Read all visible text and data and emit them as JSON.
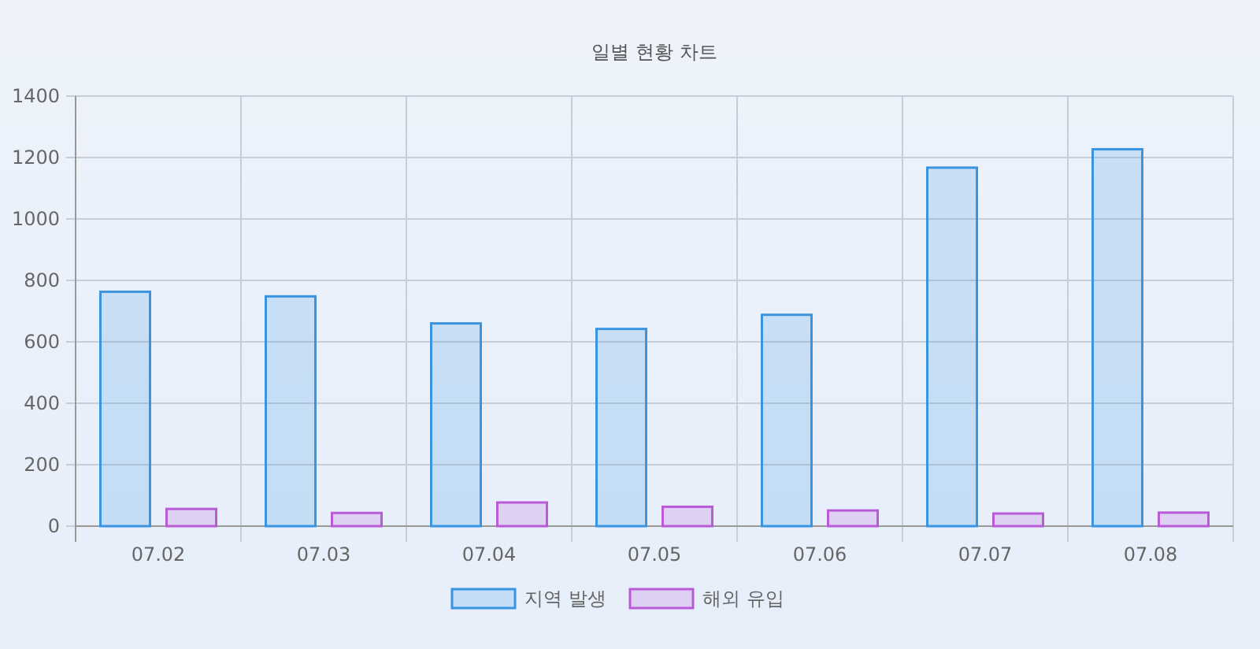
{
  "chart_data": {
    "type": "bar",
    "title": "일별 현황 차트",
    "categories": [
      "07.02",
      "07.03",
      "07.04",
      "07.05",
      "07.06",
      "07.07",
      "07.08"
    ],
    "series": [
      {
        "name": "지역 발생",
        "color": "#3a94e0",
        "values": [
          763,
          748,
          660,
          642,
          688,
          1167,
          1227
        ]
      },
      {
        "name": "해외 유입",
        "color": "#b95ad6",
        "values": [
          56,
          43,
          77,
          63,
          51,
          41,
          44
        ]
      }
    ],
    "ylim": [
      0,
      1400
    ],
    "yticks": [
      0,
      200,
      400,
      600,
      800,
      1000,
      1200,
      1400
    ],
    "grid": true,
    "legend": "bottom"
  }
}
